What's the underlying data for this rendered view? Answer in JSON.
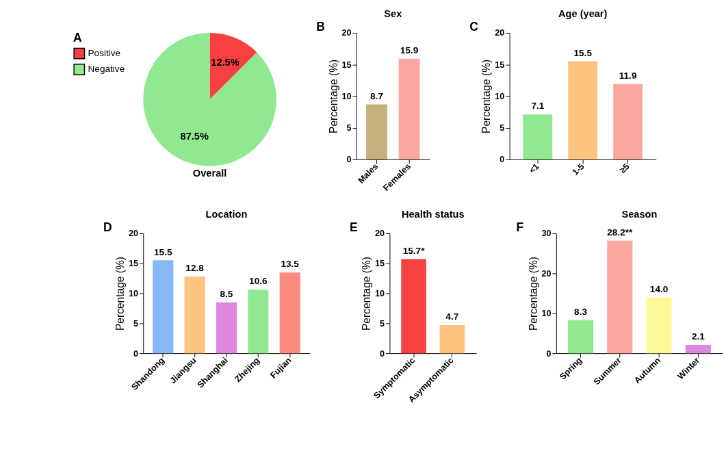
{
  "chart_data": [
    {
      "type": "pie",
      "title": "Overall",
      "annotations": [
        "A"
      ],
      "categories": [
        "Positive",
        "Negative"
      ],
      "values": [
        12.5,
        87.5
      ],
      "colors": [
        "#f94040",
        "#90e890"
      ],
      "value_labels": [
        "12.5%",
        "87.5%"
      ],
      "legend": "left"
    },
    {
      "type": "bar",
      "title": "Sex",
      "annotations": [
        "B"
      ],
      "ylabel": "Percentage (%)",
      "categories": [
        "Males",
        "Females"
      ],
      "values": [
        8.7,
        15.9
      ],
      "colors": [
        "#c4b07a",
        "#fba9a0"
      ],
      "value_labels": [
        "8.7",
        "15.9"
      ],
      "ylim": [
        0,
        20
      ],
      "yticks": [
        0,
        5,
        10,
        15,
        20
      ]
    },
    {
      "type": "bar",
      "title": "Age (year)",
      "annotations": [
        "C"
      ],
      "ylabel": "Percentage (%)",
      "categories": [
        "<1",
        "1-5",
        "≥5"
      ],
      "values": [
        7.1,
        15.5,
        11.9
      ],
      "colors": [
        "#90e890",
        "#fbc580",
        "#fba9a0"
      ],
      "value_labels": [
        "7.1",
        "15.5",
        "11.9"
      ],
      "ylim": [
        0,
        20
      ],
      "yticks": [
        0,
        5,
        10,
        15,
        20
      ]
    },
    {
      "type": "bar",
      "title": "Location",
      "annotations": [
        "D"
      ],
      "ylabel": "Percentage (%)",
      "categories": [
        "Shandong",
        "Jiangsu",
        "Shanghai",
        "Zhejing",
        "Fujian"
      ],
      "values": [
        15.5,
        12.8,
        8.5,
        10.6,
        13.5
      ],
      "colors": [
        "#86b8f5",
        "#fbc580",
        "#dd88e0",
        "#90e890",
        "#fa8a80"
      ],
      "value_labels": [
        "15.5",
        "12.8",
        "8.5",
        "10.6",
        "13.5"
      ],
      "ylim": [
        0,
        20
      ],
      "yticks": [
        0,
        5,
        10,
        15,
        20
      ]
    },
    {
      "type": "bar",
      "title": "Health status",
      "annotations": [
        "E"
      ],
      "ylabel": "Percentage (%)",
      "categories": [
        "Symptomatic",
        "Asymptomatic"
      ],
      "values": [
        15.7,
        4.7
      ],
      "colors": [
        "#fa4040",
        "#fbc580"
      ],
      "value_labels": [
        "15.7*",
        "4.7"
      ],
      "ylim": [
        0,
        20
      ],
      "yticks": [
        0,
        5,
        10,
        15,
        20
      ]
    },
    {
      "type": "bar",
      "title": "Season",
      "annotations": [
        "F"
      ],
      "ylabel": "Percentage (%)",
      "categories": [
        "Spring",
        "Summer",
        "Autumn",
        "Winter"
      ],
      "values": [
        8.3,
        28.2,
        14.0,
        2.1
      ],
      "colors": [
        "#90e890",
        "#fba9a0",
        "#fdf99a",
        "#dd88e0"
      ],
      "value_labels": [
        "8.3",
        "28.2**",
        "14.0",
        "2.1"
      ],
      "ylim": [
        0,
        30
      ],
      "yticks": [
        0,
        10,
        20,
        30
      ]
    }
  ]
}
